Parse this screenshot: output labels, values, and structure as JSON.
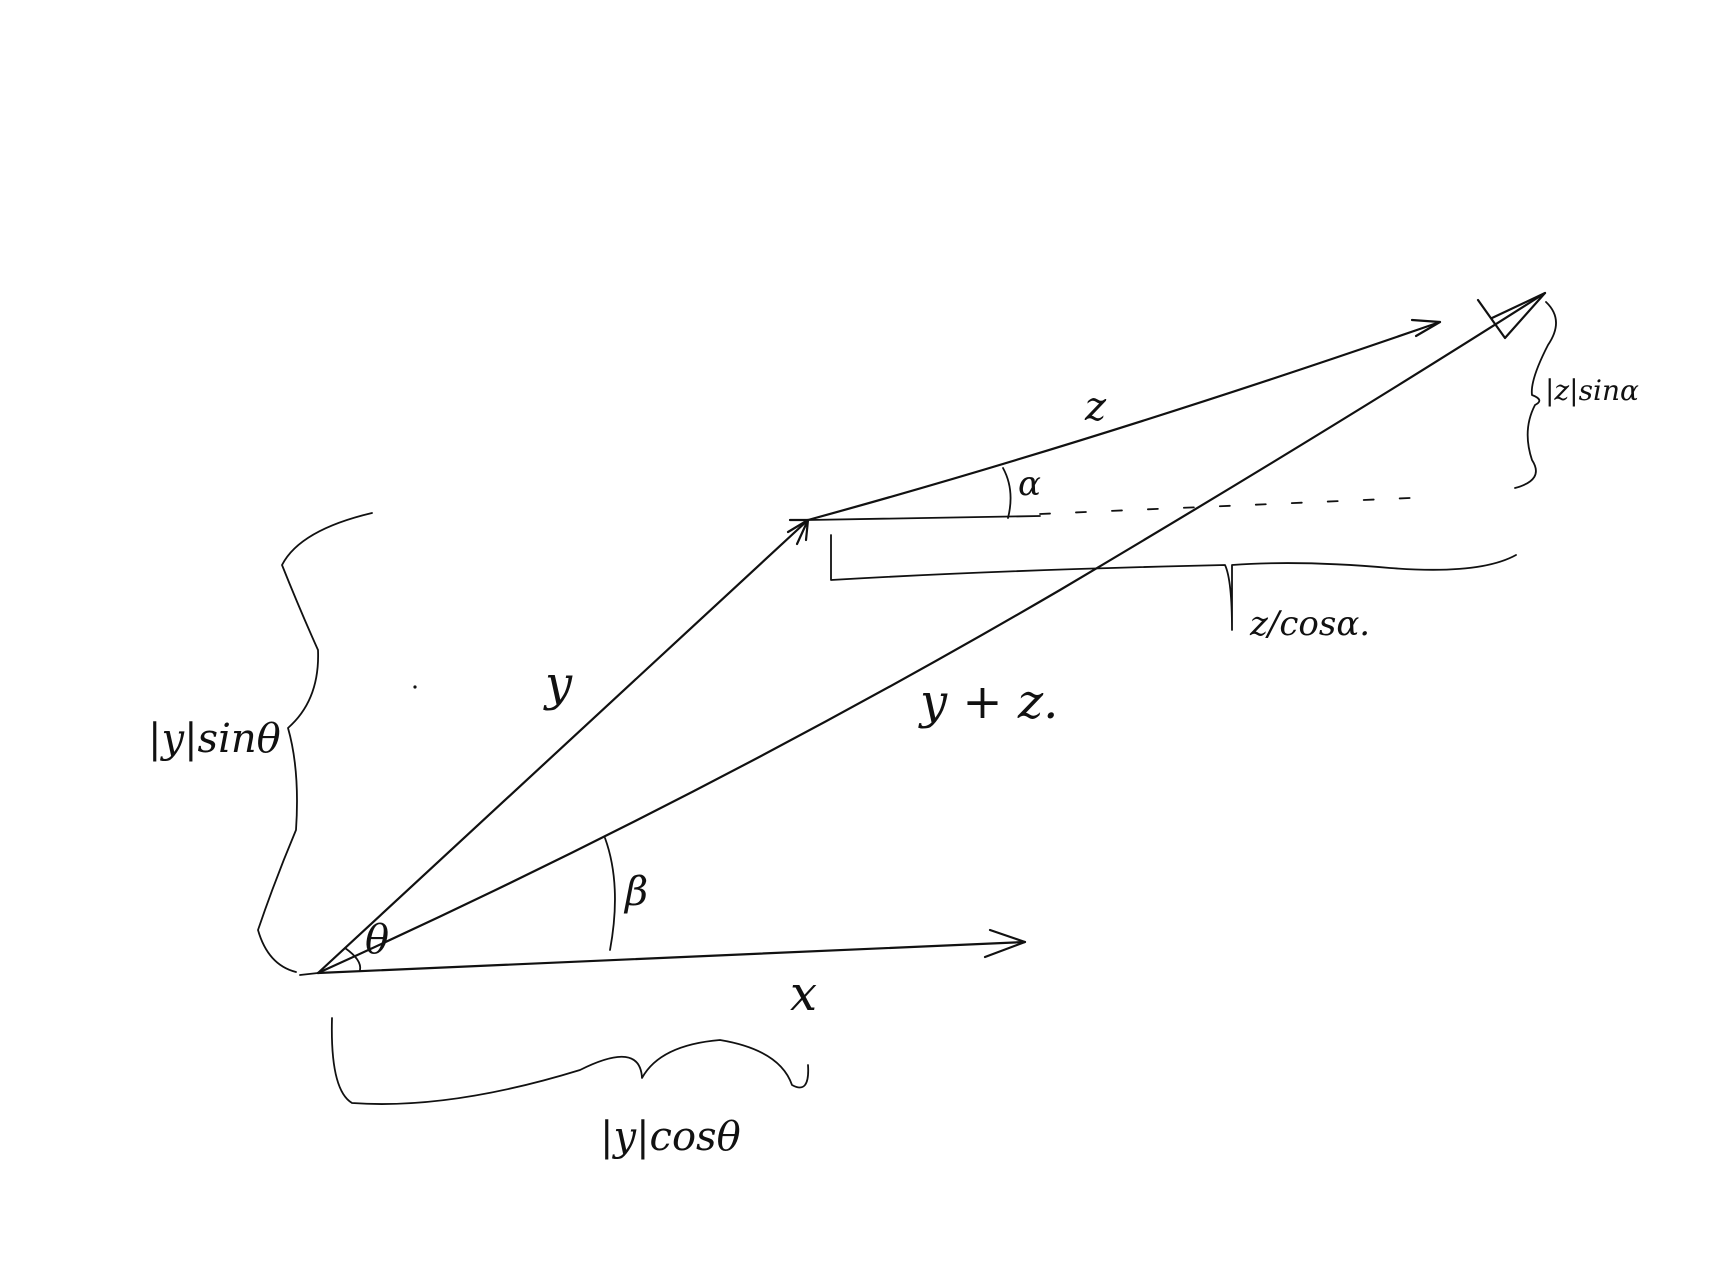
{
  "labels": {
    "vector_y": "y",
    "vector_z": "z",
    "vector_x": "x",
    "vector_sum": "y + z.",
    "angle_theta": "θ",
    "angle_alpha": "α",
    "angle_beta": "β",
    "y_sin": "|y|sinθ",
    "y_cos": "|y|cosθ",
    "z_sin": "|z|sinα",
    "z_cos": "z/cosα."
  },
  "colors": {
    "ink": "#111111",
    "paper": "#ffffff"
  }
}
